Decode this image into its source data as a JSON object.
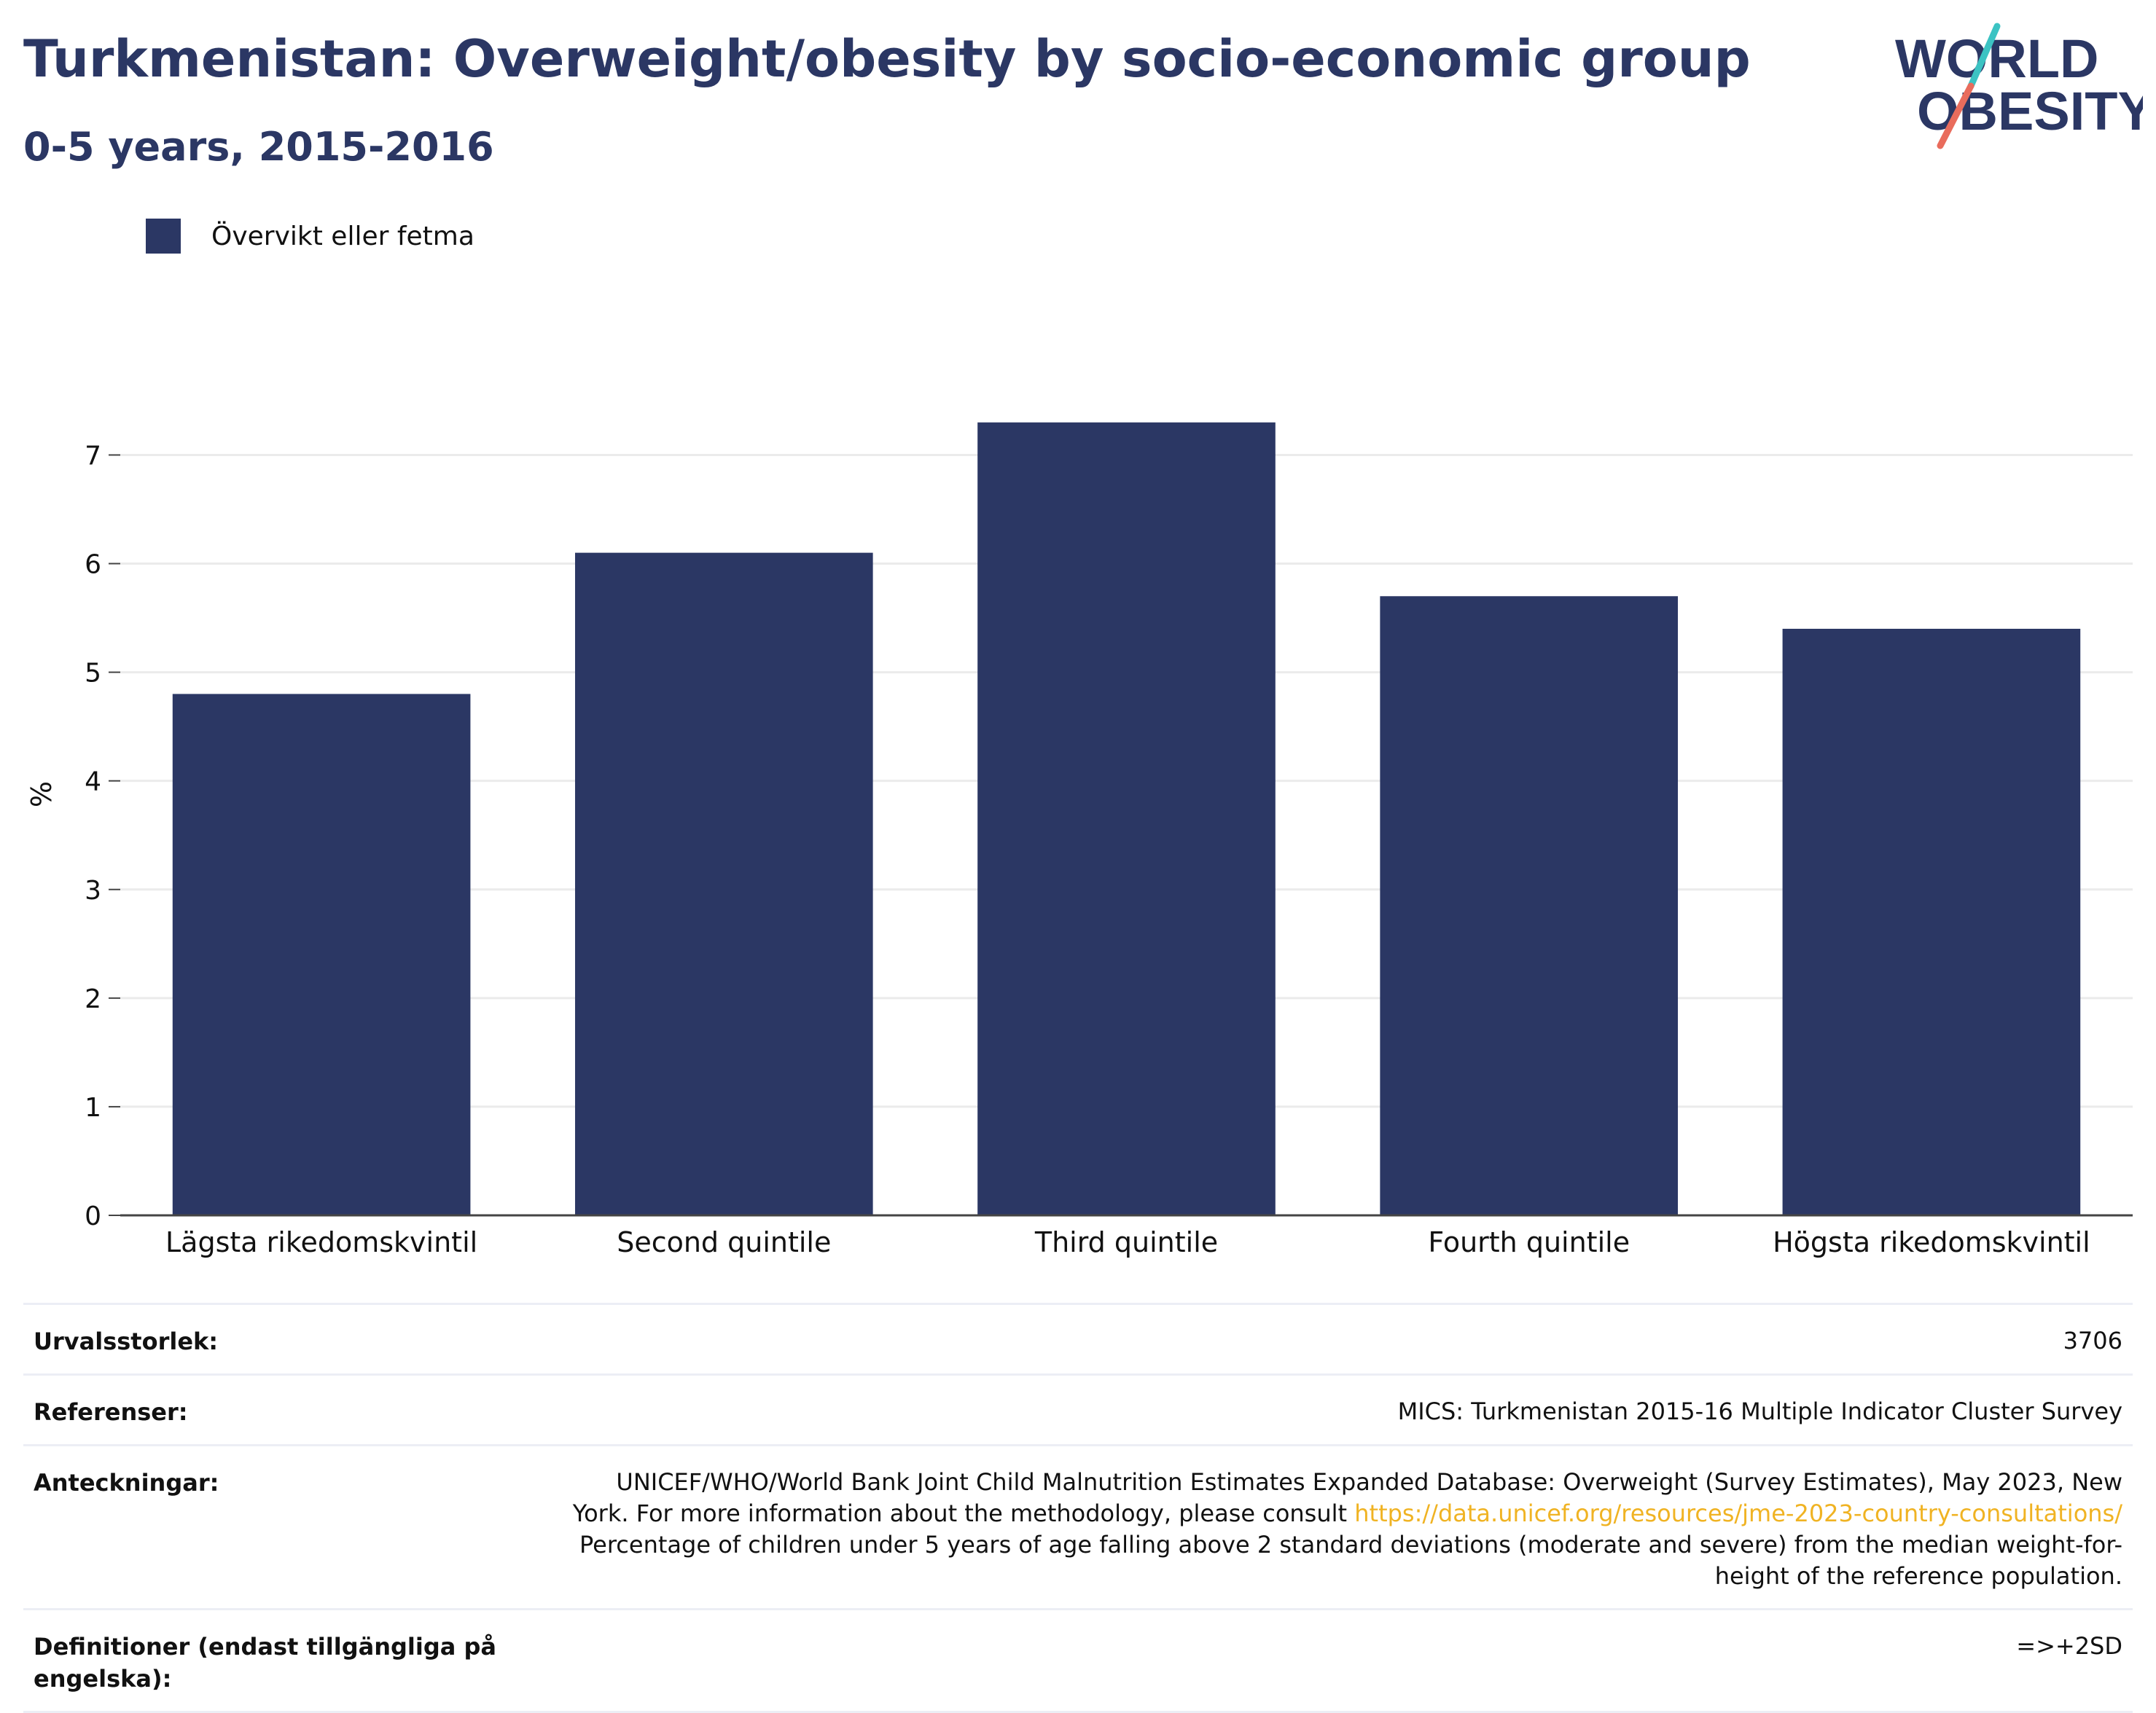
{
  "header": {
    "title": "Turkmenistan: Overweight/obesity by socio-economic group",
    "subtitle": "0-5 years, 2015-2016"
  },
  "logo": {
    "line1": "WORLD",
    "line2": "OBESITY",
    "colors": {
      "text": "#2b3764",
      "teal": "#3cc3c3",
      "coral": "#e96c5c"
    }
  },
  "colors": {
    "bar": "#2b3764",
    "grid": "#ebebeb",
    "axis": "#444444",
    "link": "#f0b323"
  },
  "chart_data": {
    "type": "bar",
    "title": "Turkmenistan: Overweight/obesity by socio-economic group",
    "subtitle": "0-5 years, 2015-2016",
    "categories": [
      "Lägsta rikedomskvintil",
      "Second quintile",
      "Third quintile",
      "Fourth quintile",
      "Högsta rikedomskvintil"
    ],
    "series": [
      {
        "name": "Övervikt eller fetma",
        "values": [
          4.8,
          6.1,
          7.3,
          5.7,
          5.4
        ]
      }
    ],
    "xlabel": "",
    "ylabel": "%",
    "ylim": [
      0,
      7.6
    ],
    "yticks": [
      0,
      1,
      2,
      3,
      4,
      5,
      6,
      7
    ],
    "grid": true,
    "legend": "top-left"
  },
  "meta": [
    {
      "label": "Urvalsstorlek:",
      "value": "3706"
    },
    {
      "label": "Referenser:",
      "value": "MICS: Turkmenistan 2015-16 Multiple Indicator Cluster Survey"
    },
    {
      "label": "Anteckningar:",
      "value_before": "UNICEF/WHO/World Bank Joint Child Malnutrition Estimates Expanded Database: Overweight (Survey Estimates), May 2023, New York. For more information about the methodology, please consult ",
      "link": "https://data.unicef.org/resources/jme-2023-country-consultations/",
      "value_after": " Percentage of children under 5 years of age falling above 2 standard deviations (moderate and severe) from the median weight-for-height of the reference population."
    },
    {
      "label": "Definitioner (endast tillgängliga på engelska):",
      "value": "=>+2SD"
    }
  ]
}
